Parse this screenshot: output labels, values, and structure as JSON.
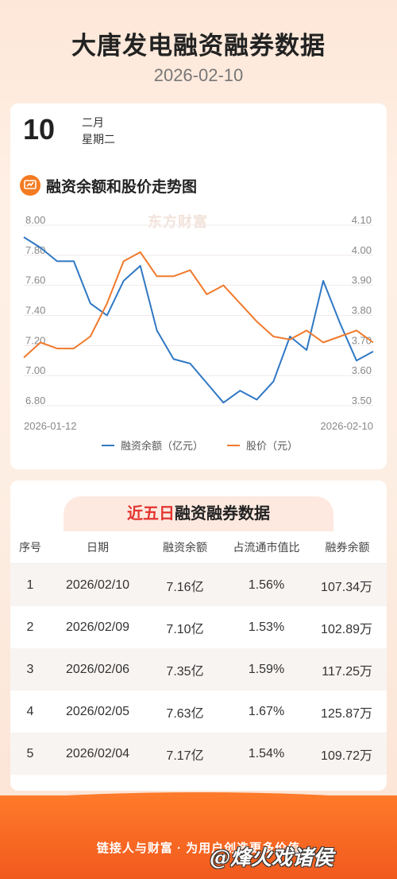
{
  "header": {
    "title": "大唐发电融资融券数据",
    "date": "2026-02-10"
  },
  "datebox": {
    "day": "10",
    "month": "二月",
    "weekday": "星期二"
  },
  "chart_section": {
    "title": "融资余额和股价走势图",
    "watermark": "东方财富"
  },
  "chart_data": {
    "type": "line",
    "x_start": "2026-01-12",
    "x_end": "2026-02-10",
    "left_axis": {
      "ticks": [
        "8.00",
        "7.80",
        "7.60",
        "7.40",
        "7.20",
        "7.00",
        "6.80"
      ],
      "ylim": [
        6.8,
        8.0
      ]
    },
    "right_axis": {
      "ticks": [
        "4.10",
        "4.00",
        "3.90",
        "3.80",
        "3.70",
        "3.60",
        "3.50"
      ],
      "ylim": [
        3.5,
        4.1
      ]
    },
    "series": [
      {
        "name": "融资余额（亿元）",
        "axis": "left",
        "color": "#2f78c4",
        "values": [
          7.92,
          7.85,
          7.76,
          7.76,
          7.48,
          7.4,
          7.63,
          7.73,
          7.3,
          7.11,
          7.08,
          6.95,
          6.82,
          6.9,
          6.84,
          6.96,
          7.26,
          7.17,
          7.63,
          7.35,
          7.1,
          7.16
        ]
      },
      {
        "name": "股价（元）",
        "axis": "right",
        "color": "#f07a2c",
        "values": [
          3.66,
          3.71,
          3.69,
          3.69,
          3.73,
          3.84,
          3.98,
          4.01,
          3.93,
          3.93,
          3.95,
          3.87,
          3.9,
          3.84,
          3.78,
          3.73,
          3.72,
          3.75,
          3.71,
          3.73,
          3.75,
          3.71
        ]
      }
    ]
  },
  "legend": {
    "series1": "融资余额（亿元）",
    "series2": "股价（元）"
  },
  "table_section": {
    "title_highlight": "近五日",
    "title_rest": "融资融券数据",
    "headers": [
      "序号",
      "日期",
      "融资余额",
      "占流通市值比",
      "融券余额"
    ],
    "rows": [
      [
        "1",
        "2026/02/10",
        "7.16亿",
        "1.56%",
        "107.34万"
      ],
      [
        "2",
        "2026/02/09",
        "7.10亿",
        "1.53%",
        "102.89万"
      ],
      [
        "3",
        "2026/02/06",
        "7.35亿",
        "1.59%",
        "117.25万"
      ],
      [
        "4",
        "2026/02/05",
        "7.63亿",
        "1.67%",
        "125.87万"
      ],
      [
        "5",
        "2026/02/04",
        "7.17亿",
        "1.54%",
        "109.72万"
      ]
    ]
  },
  "footer": {
    "slogan": "链接人与财富 · 为用户创造更多价值",
    "signature": "@烽火戏诸侯"
  }
}
